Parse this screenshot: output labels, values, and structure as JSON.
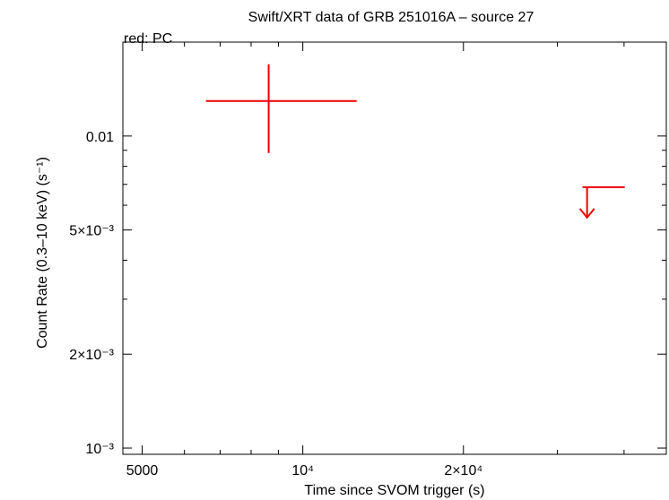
{
  "chart_data": {
    "type": "scatter",
    "title": "Swift/XRT data of GRB 251016A – source 27",
    "annotation": "red: PC",
    "x_label": "Time since SVOM trigger (s)",
    "y_label": "Count Rate (0.3–10 keV) (s⁻¹)",
    "xlog": true,
    "ylog": true,
    "color": "#ee0000",
    "xlim": [
      4600,
      48000
    ],
    "ylim": [
      0.000955,
      0.02
    ],
    "xticks": [
      5000,
      {
        "value": 10000,
        "label": "10⁴"
      },
      {
        "value": 20000,
        "label": "2×10⁴"
      }
    ],
    "xminor": [
      6000,
      7000,
      8000,
      9000,
      30000,
      40000
    ],
    "yticks": [
      {
        "value": 0.001,
        "label": "10⁻³"
      },
      {
        "value": 0.002,
        "label": "2×10⁻³"
      },
      {
        "value": 0.005,
        "label": "5×10⁻³"
      },
      0.01
    ],
    "yminor": [
      0.003,
      0.004,
      0.006,
      0.007,
      0.008,
      0.009
    ],
    "points": {
      "x": [
        8630
      ],
      "xlow": [
        6585
      ],
      "xhigh": [
        12614
      ],
      "y": [
        0.01295
      ],
      "ylow": [
        0.00882
      ],
      "yhigh": [
        0.01698
      ]
    },
    "upper_limits": {
      "x": [
        34100
      ],
      "xlow": [
        33440
      ],
      "xhigh": [
        40120
      ],
      "y": [
        0.00686
      ]
    }
  }
}
